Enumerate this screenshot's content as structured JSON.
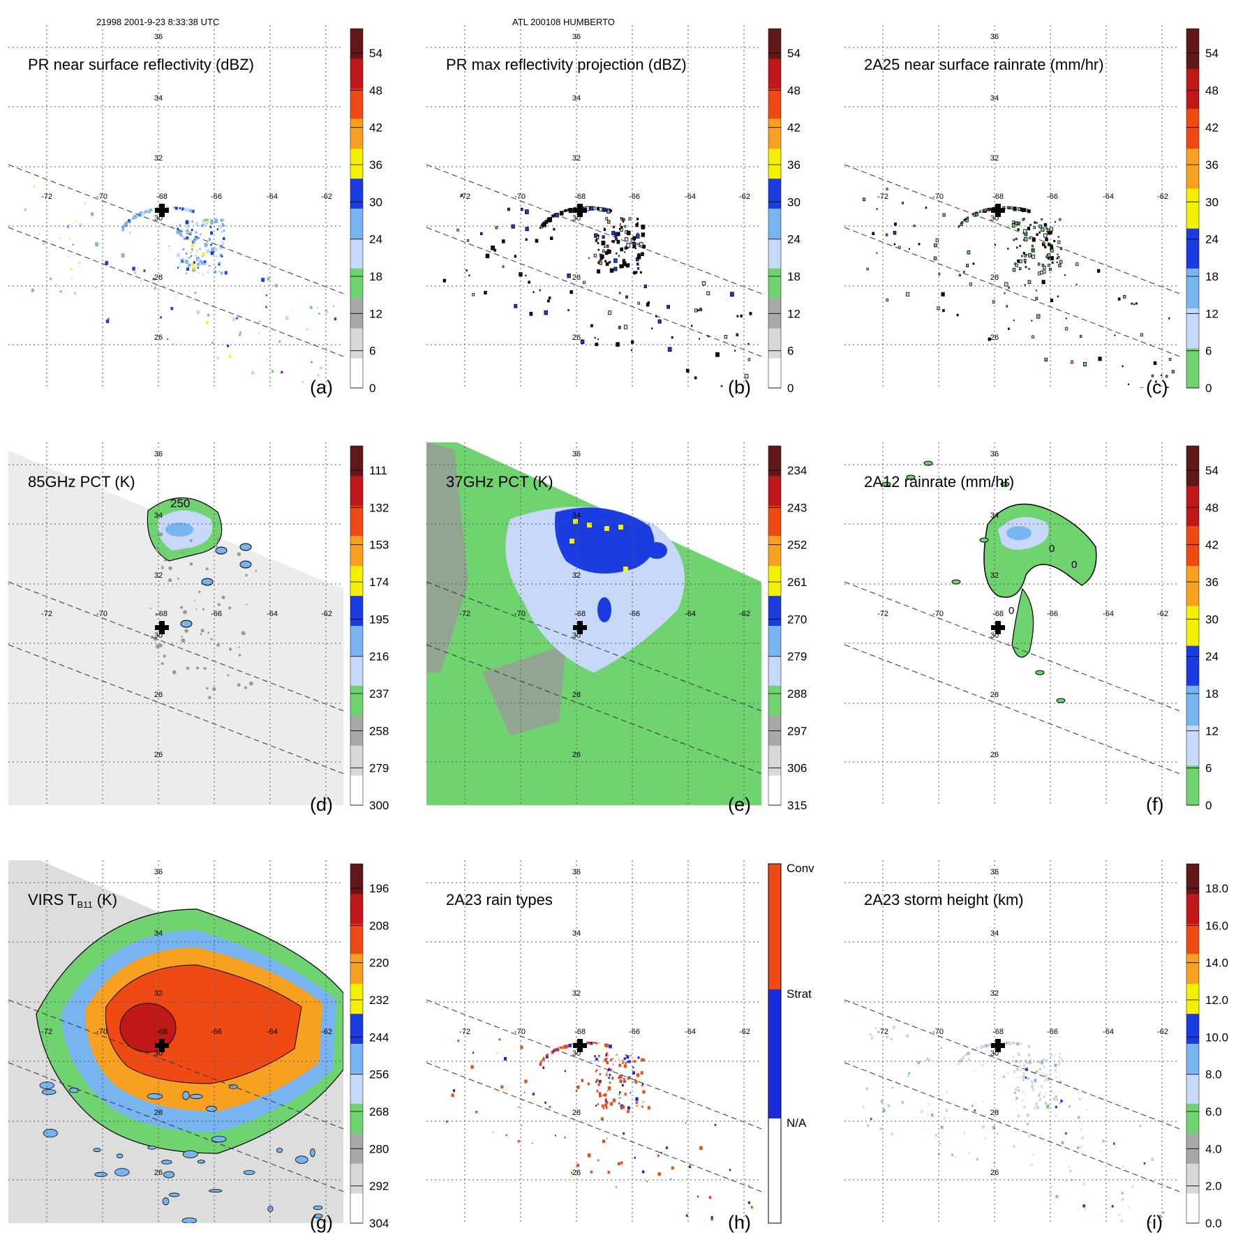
{
  "header": {
    "orbit_time": "21998 2001-9-23 8:33:38 UTC",
    "storm": "ATL 200108 HUMBERTO"
  },
  "map": {
    "lon_labels": [
      "-72",
      "-70",
      "-68",
      "-66",
      "-64",
      "-62"
    ],
    "lat_labels": [
      "36",
      "34",
      "32",
      "30",
      "28",
      "26"
    ]
  },
  "panels": [
    {
      "id": "a",
      "title": "PR near surface reflectivity (dBZ)",
      "label": "(a)",
      "colorbar": [
        "0",
        "6",
        "12",
        "18",
        "24",
        "30",
        "36",
        "42",
        "48",
        "54"
      ],
      "field": "swath-scatter",
      "palette": "main"
    },
    {
      "id": "b",
      "title": "PR max reflectivity projection (dBZ)",
      "label": "(b)",
      "colorbar": [
        "0",
        "6",
        "12",
        "18",
        "24",
        "30",
        "36",
        "42",
        "48",
        "54"
      ],
      "field": "swath-contour",
      "palette": "main"
    },
    {
      "id": "c",
      "title": "2A25 near surface rainrate (mm/hr)",
      "label": "(c)",
      "colorbar": [
        "0",
        "6",
        "12",
        "18",
        "24",
        "30",
        "36",
        "42",
        "48",
        "54"
      ],
      "field": "swath-contour-green",
      "palette": "rain"
    },
    {
      "id": "d",
      "title": "85GHz PCT (K)",
      "label": "(d)",
      "colorbar": [
        "300",
        "279",
        "258",
        "237",
        "216",
        "195",
        "174",
        "153",
        "132",
        "111"
      ],
      "contour_label": "250",
      "field": "tmi85",
      "palette": "main"
    },
    {
      "id": "e",
      "title": "37GHz PCT (K)",
      "label": "(e)",
      "colorbar": [
        "315",
        "306",
        "297",
        "288",
        "279",
        "270",
        "261",
        "252",
        "243",
        "234"
      ],
      "field": "tmi37",
      "palette": "main"
    },
    {
      "id": "f",
      "title": "2A12 rainrate (mm/hr)",
      "label": "(f)",
      "colorbar": [
        "0",
        "6",
        "12",
        "18",
        "24",
        "30",
        "36",
        "42",
        "48",
        "54"
      ],
      "contour_labels": [
        "0",
        "0",
        "0"
      ],
      "field": "tmirain",
      "palette": "rain"
    },
    {
      "id": "g",
      "title": "VIRS T",
      "title_sub": "B11",
      "title_tail": " (K)",
      "label": "(g)",
      "colorbar": [
        "304",
        "292",
        "280",
        "268",
        "256",
        "244",
        "232",
        "220",
        "208",
        "196"
      ],
      "field": "virs",
      "palette": "main"
    },
    {
      "id": "h",
      "title": "2A23 rain types",
      "label": "(h)",
      "colorbar": [
        "N/A",
        "Strat",
        "Conv"
      ],
      "field": "raintype",
      "palette": "type"
    },
    {
      "id": "i",
      "title": "2A23 storm height (km)",
      "label": "(i)",
      "colorbar": [
        "0.0",
        "2.0",
        "4.0",
        "6.0",
        "8.0",
        "10.0",
        "12.0",
        "14.0",
        "16.0",
        "18.0"
      ],
      "field": "height",
      "palette": "main"
    }
  ],
  "colors": {
    "main": [
      "#ffffff",
      "#d8d8d8",
      "#a8a8a8",
      "#6fd36f",
      "#c8d8f8",
      "#78b4f0",
      "#1a3ce0",
      "#f5f000",
      "#f8a020",
      "#f04a14",
      "#c01818",
      "#601818"
    ],
    "rain": [
      "#6fd36f",
      "#c8d8f8",
      "#78b4f0",
      "#1a3ce0",
      "#f5f000",
      "#f8a020",
      "#f04a14",
      "#c01818",
      "#601818"
    ],
    "type": [
      "#ffffff",
      "#1a2ce0",
      "#f04a14"
    ]
  }
}
